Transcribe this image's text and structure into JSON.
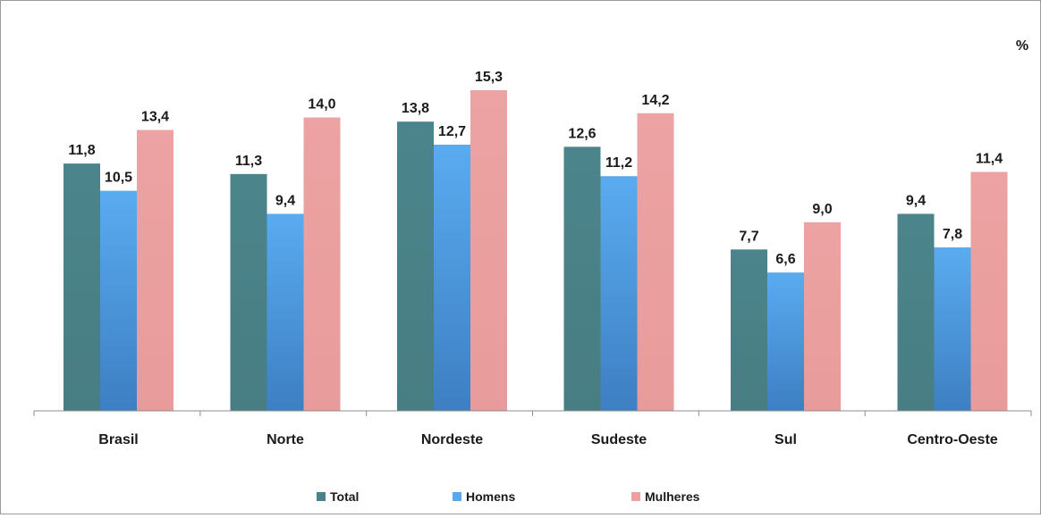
{
  "chart_data": {
    "type": "bar",
    "unit": "%",
    "categories": [
      "Brasil",
      "Norte",
      "Nordeste",
      "Sudeste",
      "Sul",
      "Centro-Oeste"
    ],
    "series": [
      {
        "name": "Total",
        "values": [
          11.8,
          11.3,
          13.8,
          12.6,
          7.7,
          9.4
        ],
        "labels": [
          "11,8",
          "11,3",
          "13,8",
          "12,6",
          "7,7",
          "9,4"
        ],
        "color": "#4a8288"
      },
      {
        "name": "Homens",
        "values": [
          10.5,
          9.4,
          12.7,
          11.2,
          6.6,
          7.8
        ],
        "labels": [
          "10,5",
          "9,4",
          "12,7",
          "11,2",
          "6,6",
          "7,8"
        ],
        "color": "#59a8ec"
      },
      {
        "name": "Mulheres",
        "values": [
          13.4,
          14.0,
          15.3,
          14.2,
          9.0,
          11.4
        ],
        "labels": [
          "13,4",
          "14,0",
          "15,3",
          "14,2",
          "9,0",
          "11,4"
        ],
        "color": "#eba0a0"
      }
    ],
    "ylim": [
      0,
      15.3
    ],
    "grid": false,
    "legend_position": "bottom"
  }
}
